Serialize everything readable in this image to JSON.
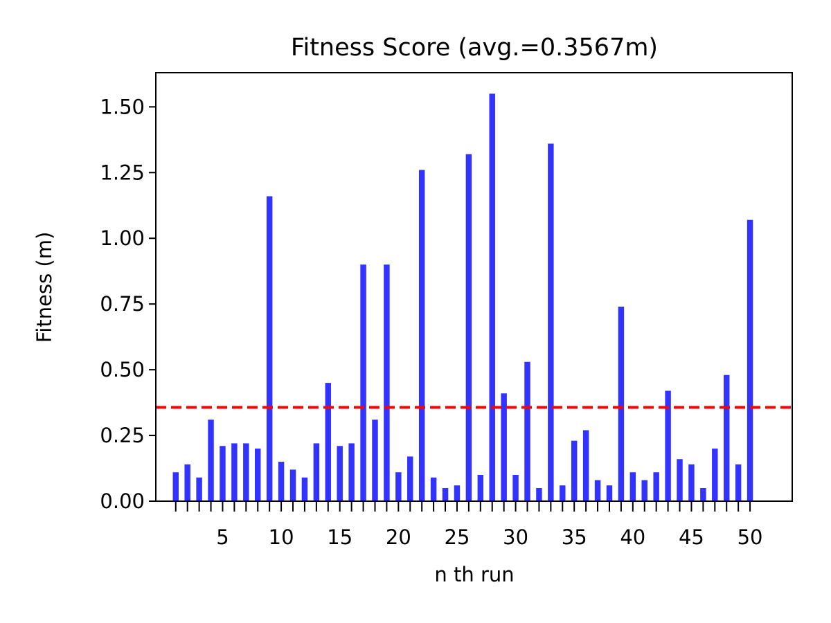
{
  "chart_data": {
    "type": "bar",
    "title": "Fitness Score (avg.=0.3567m)",
    "xlabel": "n th run",
    "ylabel": "Fitness (m)",
    "x": [
      1,
      2,
      3,
      4,
      5,
      6,
      7,
      8,
      9,
      10,
      11,
      12,
      13,
      14,
      15,
      16,
      17,
      18,
      19,
      20,
      21,
      22,
      23,
      24,
      25,
      26,
      27,
      28,
      29,
      30,
      31,
      32,
      33,
      34,
      35,
      36,
      37,
      38,
      39,
      40,
      41,
      42,
      43,
      44,
      45,
      46,
      47,
      48,
      49,
      50
    ],
    "values": [
      0.11,
      0.14,
      0.09,
      0.31,
      0.21,
      0.22,
      0.22,
      0.2,
      1.16,
      0.15,
      0.12,
      0.09,
      0.22,
      0.45,
      0.21,
      0.22,
      0.9,
      0.31,
      0.9,
      0.11,
      0.17,
      1.26,
      0.09,
      0.05,
      0.06,
      1.32,
      0.1,
      1.55,
      0.41,
      0.1,
      0.53,
      0.05,
      1.36,
      0.06,
      0.23,
      0.27,
      0.08,
      0.06,
      0.74,
      0.11,
      0.08,
      0.11,
      0.42,
      0.16,
      0.14,
      0.05,
      0.2,
      0.48,
      0.14,
      1.07
    ],
    "xticks": [
      "5",
      "10",
      "15",
      "20",
      "25",
      "30",
      "35",
      "40",
      "45",
      "50"
    ],
    "xtick_values": [
      5,
      10,
      15,
      20,
      25,
      30,
      35,
      40,
      45,
      50
    ],
    "yticks": [
      "0.00",
      "0.25",
      "0.50",
      "0.75",
      "1.00",
      "1.25",
      "1.50"
    ],
    "ytick_values": [
      0,
      0.25,
      0.5,
      0.75,
      1.0,
      1.25,
      1.5
    ],
    "xlim": [
      -0.7,
      53.6
    ],
    "ylim": [
      0,
      1.63
    ],
    "average_line": {
      "value": 0.3567,
      "color": "#ff0000",
      "style": "dashed"
    },
    "bar_color": "#3333ff",
    "grid": false
  }
}
